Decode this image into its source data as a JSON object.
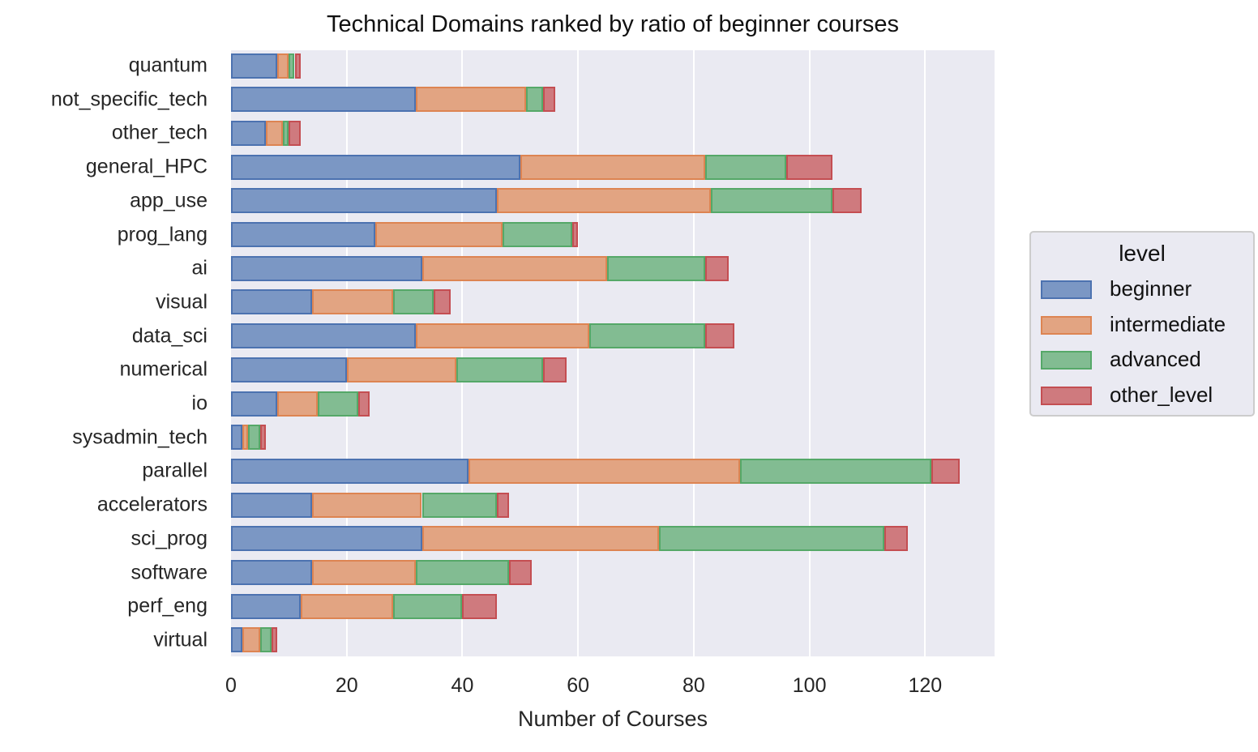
{
  "chart_data": {
    "type": "bar",
    "orientation": "horizontal",
    "stacked": true,
    "title": "Technical Domains ranked by ratio of beginner courses",
    "xlabel": "Number of Courses",
    "ylabel": "",
    "xlim": [
      0,
      132
    ],
    "xticks": [
      0,
      20,
      40,
      60,
      80,
      100,
      120
    ],
    "grid": true,
    "legend": {
      "title": "level",
      "position": "right"
    },
    "categories": [
      "quantum",
      "not_specific_tech",
      "other_tech",
      "general_HPC",
      "app_use",
      "prog_lang",
      "ai",
      "visual",
      "data_sci",
      "numerical",
      "io",
      "sysadmin_tech",
      "parallel",
      "accelerators",
      "sci_prog",
      "software",
      "perf_eng",
      "virtual"
    ],
    "series": [
      {
        "name": "beginner",
        "color": "#4c72b0",
        "fill": "#7b97c4",
        "values": [
          8,
          32,
          6,
          50,
          46,
          25,
          33,
          14,
          32,
          20,
          8,
          2,
          41,
          14,
          33,
          14,
          12,
          2
        ]
      },
      {
        "name": "intermediate",
        "color": "#dd8452",
        "fill": "#e2a482",
        "values": [
          2,
          19,
          3,
          32,
          37,
          22,
          32,
          14,
          30,
          19,
          7,
          1,
          47,
          19,
          41,
          18,
          16,
          3
        ]
      },
      {
        "name": "advanced",
        "color": "#55a868",
        "fill": "#82bc92",
        "values": [
          1,
          3,
          1,
          14,
          21,
          12,
          17,
          7,
          20,
          15,
          7,
          2,
          33,
          13,
          39,
          16,
          12,
          2
        ]
      },
      {
        "name": "other_level",
        "color": "#c44e52",
        "fill": "#cf7a7e",
        "values": [
          1,
          2,
          2,
          8,
          5,
          1,
          4,
          3,
          5,
          4,
          2,
          1,
          5,
          2,
          4,
          4,
          6,
          1
        ]
      }
    ]
  }
}
